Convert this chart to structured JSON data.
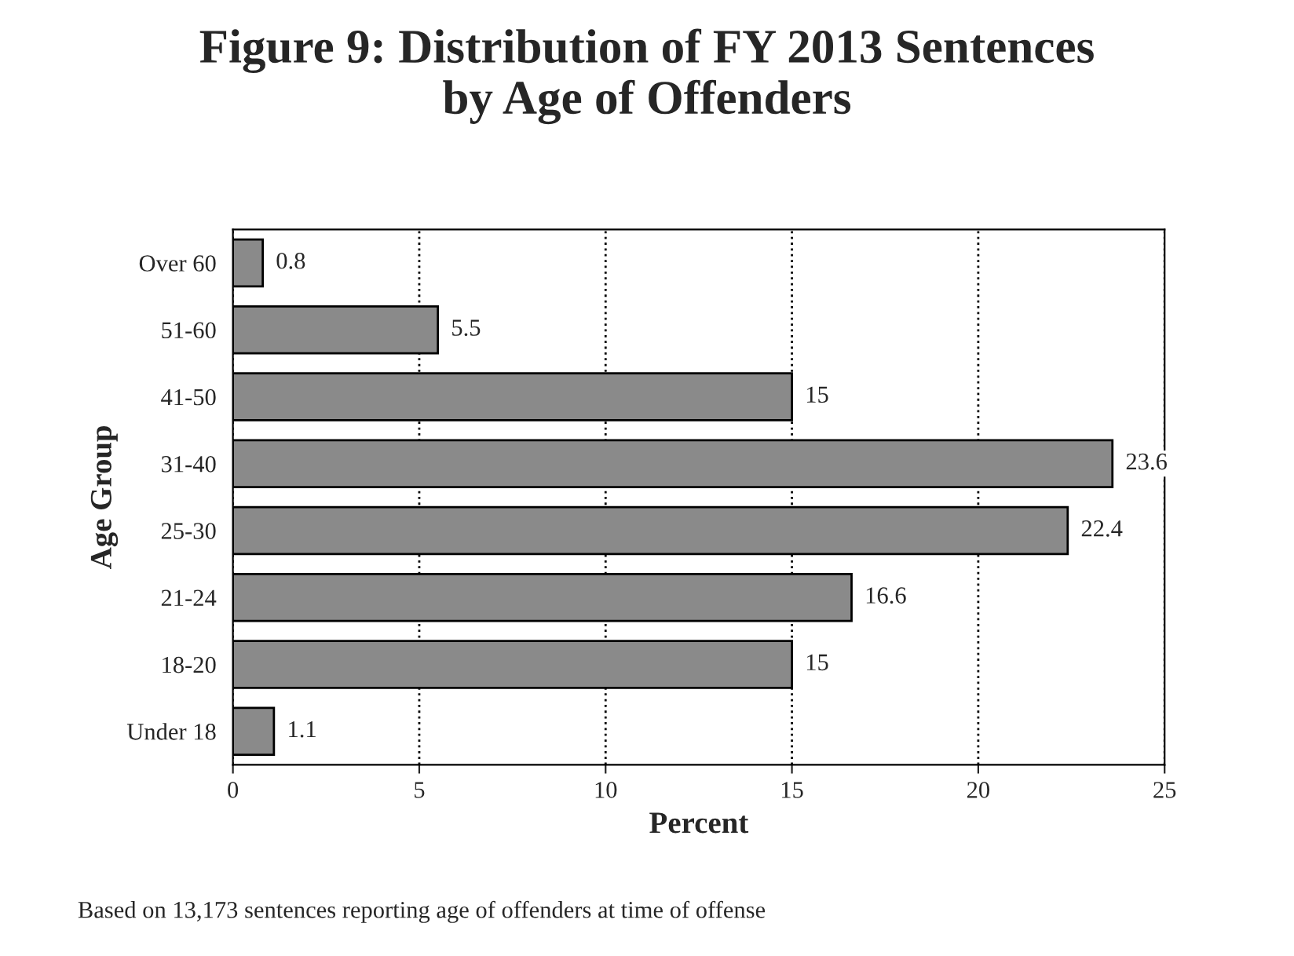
{
  "chart_data": {
    "type": "bar",
    "orientation": "horizontal",
    "title": "Figure 9: Distribution of FY 2013 Sentences\nby Age of Offenders",
    "xlabel": "Percent",
    "ylabel": "Age Group",
    "categories": [
      "Over 60",
      "51-60",
      "41-50",
      "31-40",
      "25-30",
      "21-24",
      "18-20",
      "Under 18"
    ],
    "values": [
      0.8,
      5.5,
      15,
      23.6,
      22.4,
      16.6,
      15,
      1.1
    ],
    "color": "#8a8a8a",
    "data_labels": true,
    "xlim": [
      0,
      25
    ],
    "xticks": [
      0,
      5,
      10,
      15,
      20,
      25
    ],
    "grid": "x",
    "annotations": [
      "Based on 13,173 sentences reporting age of offenders at time of offense"
    ]
  }
}
